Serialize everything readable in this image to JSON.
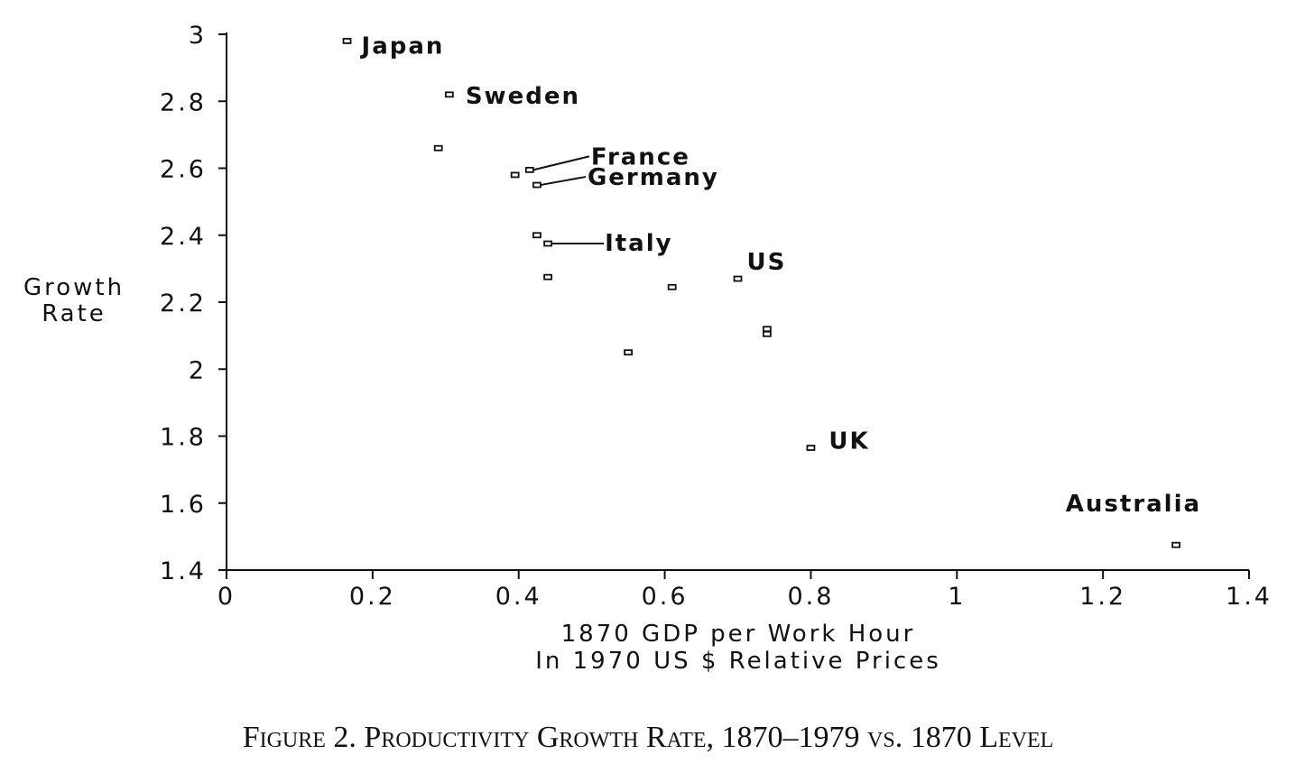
{
  "caption": "Figure 2.  Productivity Growth Rate, 1870–1979 vs. 1870 Level",
  "chart_data": {
    "type": "scatter",
    "title": "",
    "xlabel_lines": [
      "1870 GDP per Work Hour",
      "In 1970 US $ Relative Prices"
    ],
    "ylabel_lines": [
      "Growth",
      "Rate"
    ],
    "xlim": [
      0,
      1.4
    ],
    "ylim": [
      1.4,
      3.0
    ],
    "x_ticks": [
      0,
      0.2,
      0.4,
      0.6,
      0.8,
      1,
      1.2,
      1.4
    ],
    "x_tick_labels": [
      "0",
      "0.2",
      "0.4",
      "0.6",
      "0.8",
      "1",
      "1.2",
      "1.4"
    ],
    "y_ticks": [
      1.4,
      1.6,
      1.8,
      2.0,
      2.2,
      2.4,
      2.6,
      2.8,
      3.0
    ],
    "y_tick_labels": [
      "1.4",
      "1.6",
      "1.8",
      "2",
      "2.2",
      "2.4",
      "2.6",
      "2.8",
      "3"
    ],
    "grid": false,
    "legend": "none",
    "points": [
      {
        "x": 0.165,
        "y": 2.98,
        "label": "Japan"
      },
      {
        "x": 0.305,
        "y": 2.82,
        "label": "Sweden"
      },
      {
        "x": 0.29,
        "y": 2.66,
        "label": ""
      },
      {
        "x": 0.415,
        "y": 2.595,
        "label": "France"
      },
      {
        "x": 0.395,
        "y": 2.58,
        "label": ""
      },
      {
        "x": 0.425,
        "y": 2.55,
        "label": "Germany"
      },
      {
        "x": 0.425,
        "y": 2.4,
        "label": ""
      },
      {
        "x": 0.44,
        "y": 2.375,
        "label": "Italy"
      },
      {
        "x": 0.44,
        "y": 2.275,
        "label": ""
      },
      {
        "x": 0.61,
        "y": 2.245,
        "label": ""
      },
      {
        "x": 0.7,
        "y": 2.27,
        "label": "US"
      },
      {
        "x": 0.74,
        "y": 2.12,
        "label": ""
      },
      {
        "x": 0.74,
        "y": 2.105,
        "label": ""
      },
      {
        "x": 0.55,
        "y": 2.05,
        "label": ""
      },
      {
        "x": 0.8,
        "y": 1.765,
        "label": "UK"
      },
      {
        "x": 1.3,
        "y": 1.475,
        "label": "Australia"
      }
    ],
    "marker": "hollow-square",
    "color": "#111111"
  }
}
